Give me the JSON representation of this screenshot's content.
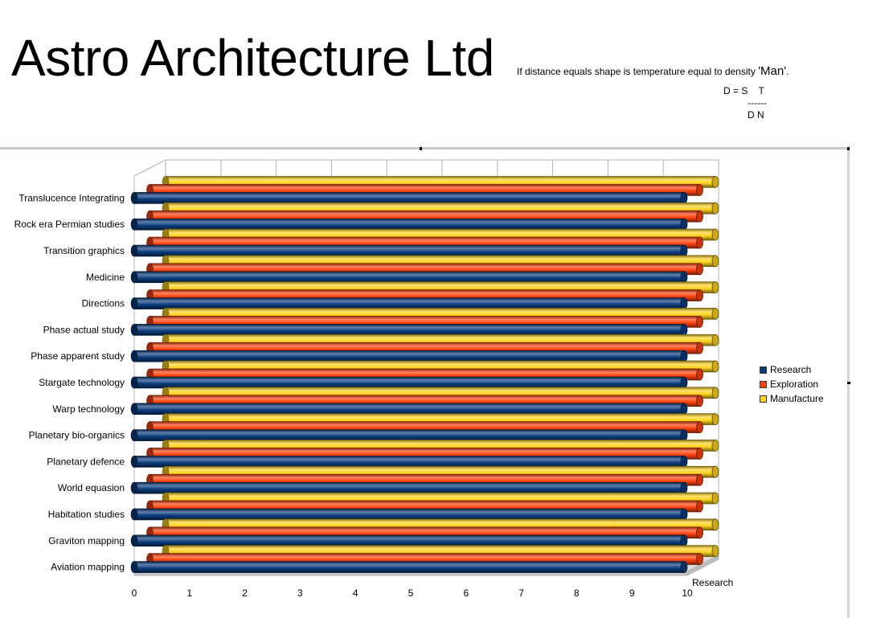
{
  "header": {
    "title": "Astro Architecture Ltd",
    "subtitle_text": "If distance equals shape is temperature equal to density ",
    "subtitle_quote": "'Man'",
    "subtitle_end": ".",
    "formula": "D = S    T\n         ------\n         D N"
  },
  "chart_data": {
    "type": "bar",
    "orientation": "horizontal",
    "three_d": true,
    "categories": [
      "Translucence Integrating",
      "Rock era Permian studies",
      "Transition graphics",
      "Medicine",
      "Directions",
      "Phase actual study",
      "Phase apparent study",
      "Stargate technology",
      "Warp technology",
      "Planetary bio-organics",
      "Planetary defence",
      "World equasion",
      "Habitation studies",
      "Graviton mapping",
      "Aviation mapping"
    ],
    "series": [
      {
        "name": "Research",
        "color": "#0a3c7d",
        "values": [
          10,
          10,
          10,
          10,
          10,
          10,
          10,
          10,
          10,
          10,
          10,
          10,
          10,
          10,
          10
        ]
      },
      {
        "name": "Exploration",
        "color": "#ff420e",
        "values": [
          10,
          10,
          10,
          10,
          10,
          10,
          10,
          10,
          10,
          10,
          10,
          10,
          10,
          10,
          10
        ]
      },
      {
        "name": "Manufacture",
        "color": "#ffd320",
        "values": [
          10,
          10,
          10,
          10,
          10,
          10,
          10,
          10,
          10,
          10,
          10,
          10,
          10,
          10,
          10
        ]
      }
    ],
    "xlim": [
      0,
      10
    ],
    "x_ticks": [
      "0",
      "1",
      "2",
      "3",
      "4",
      "5",
      "6",
      "7",
      "8",
      "9",
      "10"
    ],
    "depth_axis_label": "Research",
    "grid": true,
    "legend_position": "right"
  }
}
